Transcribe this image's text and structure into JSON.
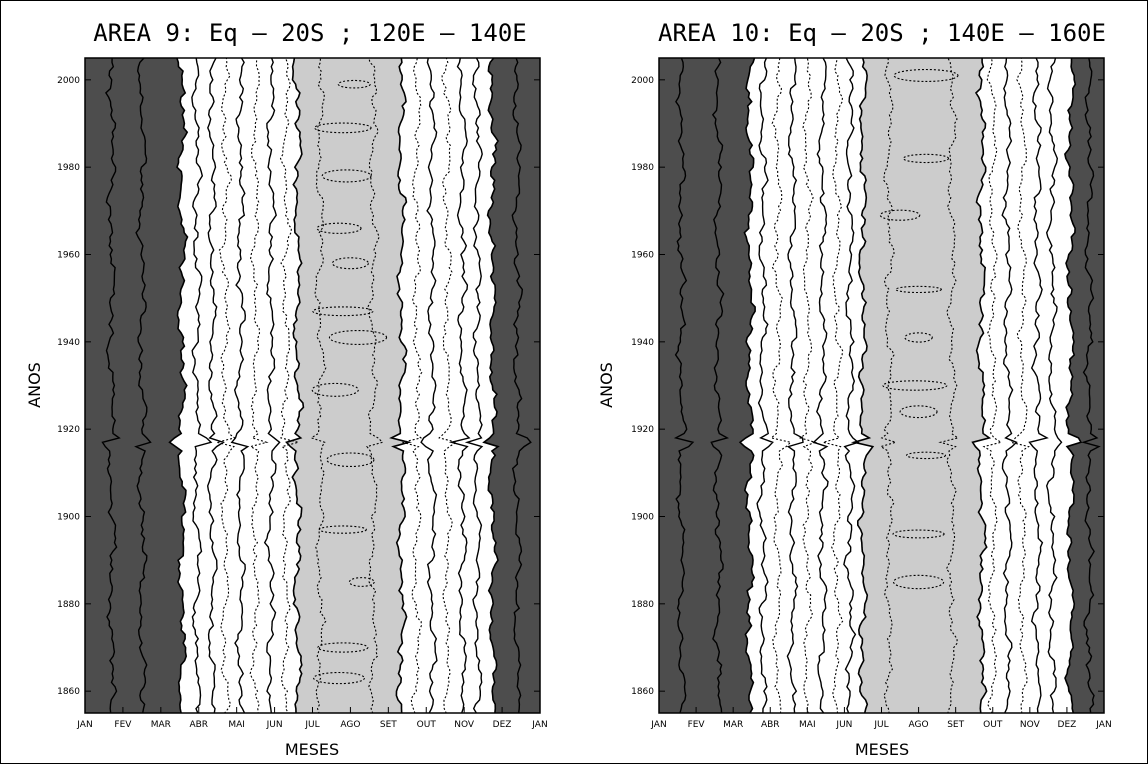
{
  "chart_data": [
    {
      "type": "heatmap",
      "title": "AREA 9: Eq — 20S ; 120E — 140E",
      "xlabel": "MESES",
      "ylabel": "ANOS",
      "x_ticks": [
        "JAN",
        "FEV",
        "MAR",
        "ABR",
        "MAI",
        "JUN",
        "JUL",
        "AGO",
        "SET",
        "OUT",
        "NOV",
        "DEZ",
        "JAN"
      ],
      "y_ticks": [
        1860,
        1880,
        1900,
        1920,
        1940,
        1960,
        1980,
        2000
      ],
      "ylim": [
        1855,
        2005
      ],
      "xlim": [
        0,
        12
      ],
      "bands": [
        {
          "class": "dark",
          "from": 0,
          "to": 2.55
        },
        {
          "class": "light",
          "from": 5.6,
          "to": 8.35
        },
        {
          "class": "dark",
          "from": 10.75,
          "to": 12
        }
      ],
      "contour_lines": [
        {
          "x": 0.7,
          "style": "solid"
        },
        {
          "x": 1.5,
          "style": "solid"
        },
        {
          "x": 2.95,
          "style": "solid"
        },
        {
          "x": 3.35,
          "style": "solid"
        },
        {
          "x": 3.7,
          "style": "dotted"
        },
        {
          "x": 4.1,
          "style": "solid"
        },
        {
          "x": 4.5,
          "style": "dotted"
        },
        {
          "x": 4.9,
          "style": "solid"
        },
        {
          "x": 5.3,
          "style": "dotted"
        },
        {
          "x": 6.2,
          "style": "dotted"
        },
        {
          "x": 7.6,
          "style": "dotted"
        },
        {
          "x": 8.75,
          "style": "dotted"
        },
        {
          "x": 9.15,
          "style": "solid"
        },
        {
          "x": 9.55,
          "style": "dotted"
        },
        {
          "x": 9.95,
          "style": "solid"
        },
        {
          "x": 10.35,
          "style": "solid"
        },
        {
          "x": 11.4,
          "style": "solid"
        }
      ],
      "cells": [
        {
          "x": 7.1,
          "y": 1999
        },
        {
          "x": 6.8,
          "y": 1989
        },
        {
          "x": 6.9,
          "y": 1978
        },
        {
          "x": 6.7,
          "y": 1966
        },
        {
          "x": 7.0,
          "y": 1958
        },
        {
          "x": 6.8,
          "y": 1947
        },
        {
          "x": 7.2,
          "y": 1941
        },
        {
          "x": 6.6,
          "y": 1929
        },
        {
          "x": 7.0,
          "y": 1913
        },
        {
          "x": 6.8,
          "y": 1897
        },
        {
          "x": 7.3,
          "y": 1885
        },
        {
          "x": 6.8,
          "y": 1870
        },
        {
          "x": 6.7,
          "y": 1863
        }
      ],
      "disturbance_year": 1917
    },
    {
      "type": "heatmap",
      "title": "AREA 10: Eq — 20S ; 140E — 160E",
      "xlabel": "MESES",
      "ylabel": "ANOS",
      "x_ticks": [
        "JAN",
        "FEV",
        "MAR",
        "ABR",
        "MAI",
        "JUN",
        "JUL",
        "AGO",
        "SET",
        "OUT",
        "NOV",
        "DEZ",
        "JAN"
      ],
      "y_ticks": [
        1860,
        1880,
        1900,
        1920,
        1940,
        1960,
        1980,
        2000
      ],
      "ylim": [
        1855,
        2005
      ],
      "xlim": [
        0,
        12
      ],
      "bands": [
        {
          "class": "dark",
          "from": 0,
          "to": 2.45
        },
        {
          "class": "light",
          "from": 5.5,
          "to": 8.7
        },
        {
          "class": "dark",
          "from": 11.1,
          "to": 12
        }
      ],
      "contour_lines": [
        {
          "x": 0.6,
          "style": "solid"
        },
        {
          "x": 1.6,
          "style": "solid"
        },
        {
          "x": 2.8,
          "style": "solid"
        },
        {
          "x": 3.2,
          "style": "dotted"
        },
        {
          "x": 3.6,
          "style": "solid"
        },
        {
          "x": 4.0,
          "style": "dotted"
        },
        {
          "x": 4.4,
          "style": "solid"
        },
        {
          "x": 4.8,
          "style": "dotted"
        },
        {
          "x": 5.15,
          "style": "solid"
        },
        {
          "x": 6.2,
          "style": "dotted"
        },
        {
          "x": 7.9,
          "style": "dotted"
        },
        {
          "x": 9.0,
          "style": "dotted"
        },
        {
          "x": 9.4,
          "style": "solid"
        },
        {
          "x": 9.8,
          "style": "dotted"
        },
        {
          "x": 10.2,
          "style": "solid"
        },
        {
          "x": 10.6,
          "style": "solid"
        },
        {
          "x": 11.6,
          "style": "solid"
        }
      ],
      "cells": [
        {
          "x": 7.2,
          "y": 2001
        },
        {
          "x": 7.2,
          "y": 1982
        },
        {
          "x": 6.5,
          "y": 1969
        },
        {
          "x": 7.0,
          "y": 1952
        },
        {
          "x": 7.0,
          "y": 1941
        },
        {
          "x": 6.9,
          "y": 1930
        },
        {
          "x": 7.0,
          "y": 1924
        },
        {
          "x": 7.2,
          "y": 1914
        },
        {
          "x": 7.0,
          "y": 1896
        },
        {
          "x": 7.0,
          "y": 1885
        }
      ],
      "disturbance_year": 1917
    }
  ],
  "colors": {
    "dark": "#4d4d4d",
    "light": "#cccccc",
    "background": "#ffffff",
    "lines": "#000000"
  }
}
